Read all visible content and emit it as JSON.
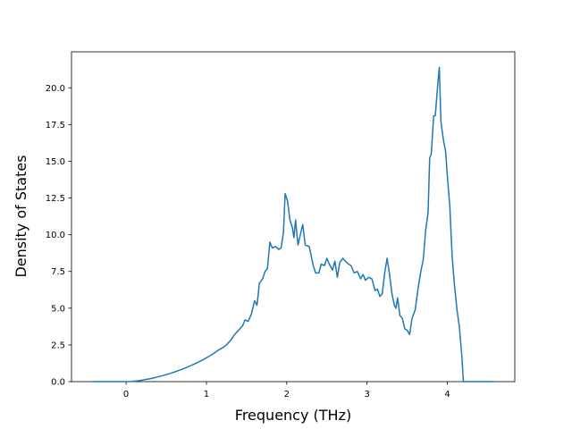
{
  "chart_data": {
    "type": "line",
    "xlabel": "Frequency (THz)",
    "ylabel": "Density of States",
    "xlim": [
      -0.68,
      4.84
    ],
    "ylim": [
      0,
      22.45
    ],
    "xticks": [
      0,
      1,
      2,
      3,
      4
    ],
    "yticks": [
      {
        "value": 0,
        "label": "0.0"
      },
      2.5,
      {
        "value": 5,
        "label": "5.0"
      },
      7.5,
      {
        "value": 10,
        "label": "10.0"
      },
      12.5,
      {
        "value": 15,
        "label": "15.0"
      },
      17.5,
      {
        "value": 20,
        "label": "20.0"
      }
    ],
    "series": [
      {
        "color": "#1f77b4",
        "x": [
          -0.43,
          -0.3,
          -0.2,
          -0.1,
          0.0,
          0.05,
          0.1,
          0.15,
          0.2,
          0.25,
          0.3,
          0.35,
          0.4,
          0.45,
          0.5,
          0.55,
          0.6,
          0.65,
          0.7,
          0.75,
          0.8,
          0.85,
          0.9,
          0.95,
          1.0,
          1.05,
          1.1,
          1.15,
          1.2,
          1.25,
          1.3,
          1.35,
          1.4,
          1.45,
          1.48,
          1.52,
          1.56,
          1.6,
          1.63,
          1.66,
          1.7,
          1.73,
          1.76,
          1.79,
          1.82,
          1.86,
          1.9,
          1.93,
          1.96,
          1.98,
          2.01,
          2.04,
          2.07,
          2.09,
          2.11,
          2.14,
          2.17,
          2.2,
          2.23,
          2.28,
          2.33,
          2.36,
          2.4,
          2.43,
          2.47,
          2.5,
          2.53,
          2.57,
          2.6,
          2.63,
          2.66,
          2.7,
          2.73,
          2.77,
          2.8,
          2.84,
          2.88,
          2.92,
          2.95,
          2.98,
          3.02,
          3.06,
          3.1,
          3.13,
          3.16,
          3.19,
          3.22,
          3.25,
          3.28,
          3.31,
          3.34,
          3.36,
          3.38,
          3.41,
          3.44,
          3.47,
          3.5,
          3.53,
          3.56,
          3.6,
          3.64,
          3.67,
          3.7,
          3.73,
          3.76,
          3.78,
          3.8,
          3.83,
          3.85,
          3.88,
          3.9,
          3.92,
          3.95,
          3.98,
          4.0,
          4.03,
          4.06,
          4.09,
          4.12,
          4.15,
          4.18,
          4.2,
          4.3,
          4.4,
          4.5,
          4.59
        ],
        "values": [
          0,
          0,
          0,
          0,
          0,
          0.01,
          0.03,
          0.06,
          0.1,
          0.15,
          0.2,
          0.26,
          0.33,
          0.4,
          0.48,
          0.56,
          0.65,
          0.75,
          0.85,
          0.96,
          1.08,
          1.2,
          1.33,
          1.47,
          1.62,
          1.78,
          1.95,
          2.15,
          2.3,
          2.5,
          2.8,
          3.2,
          3.5,
          3.8,
          4.2,
          4.1,
          4.6,
          5.5,
          5.2,
          6.7,
          7.0,
          7.5,
          7.7,
          9.5,
          9.1,
          9.2,
          9.0,
          9.1,
          10.2,
          12.8,
          12.3,
          11.0,
          10.5,
          9.8,
          11.0,
          9.3,
          10.0,
          10.7,
          9.3,
          9.2,
          7.9,
          7.4,
          7.4,
          8.0,
          7.9,
          8.4,
          8.0,
          7.6,
          8.2,
          7.1,
          8.1,
          8.4,
          8.2,
          8.0,
          7.9,
          7.4,
          7.5,
          7.0,
          7.3,
          6.9,
          7.1,
          7.0,
          6.2,
          6.3,
          5.8,
          6.0,
          7.4,
          8.4,
          7.3,
          6.0,
          5.2,
          5.0,
          5.7,
          4.5,
          4.3,
          3.6,
          3.5,
          3.2,
          4.3,
          4.9,
          6.5,
          7.5,
          8.3,
          10.3,
          11.5,
          15.2,
          15.5,
          18.1,
          18.1,
          20.2,
          21.4,
          17.7,
          16.5,
          15.6,
          14.0,
          12.0,
          8.5,
          6.5,
          4.9,
          3.7,
          1.8,
          0,
          0,
          0,
          0,
          0
        ]
      }
    ]
  }
}
